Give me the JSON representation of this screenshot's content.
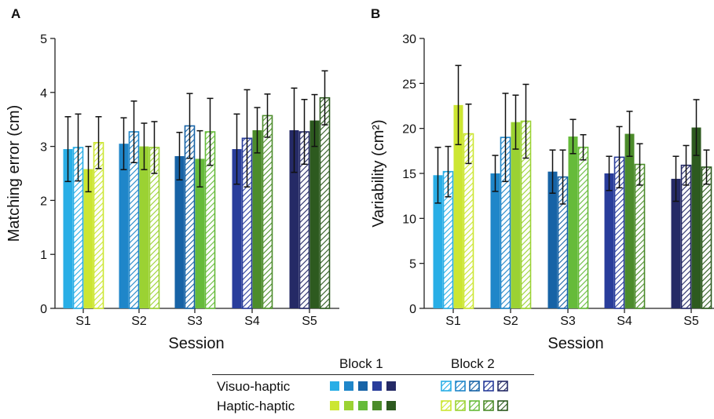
{
  "panels": [
    {
      "letter": "A"
    },
    {
      "letter": "B"
    }
  ],
  "colors": {
    "vh": [
      "#29aee6",
      "#1f86c9",
      "#1763a6",
      "#293d9b",
      "#252a66"
    ],
    "hh": [
      "#cce632",
      "#9bd233",
      "#66bb3a",
      "#4c8c2b",
      "#2d5a1f"
    ]
  },
  "legend": {
    "block1": "Block 1",
    "block2": "Block 2",
    "row1": "Visuo-haptic",
    "row2": "Haptic-haptic"
  },
  "chart_data": [
    {
      "type": "bar",
      "panel": "A",
      "title": "",
      "xlabel": "Session",
      "ylabel": "Matching error (cm)",
      "ylim": [
        0,
        5
      ],
      "yticks": [
        0,
        1,
        2,
        3,
        4,
        5
      ],
      "categories": [
        "S1",
        "S2",
        "S3",
        "S4",
        "S5"
      ],
      "series": [
        {
          "name": "Visuo-haptic Block 1",
          "values": [
            2.95,
            3.05,
            2.82,
            2.95,
            3.3
          ],
          "err": [
            0.6,
            0.48,
            0.44,
            0.65,
            0.78
          ]
        },
        {
          "name": "Visuo-haptic Block 2",
          "values": [
            2.98,
            3.27,
            3.38,
            3.15,
            3.27
          ],
          "err": [
            0.62,
            0.57,
            0.6,
            0.9,
            0.6
          ]
        },
        {
          "name": "Haptic-haptic Block 1",
          "values": [
            2.58,
            3.0,
            2.77,
            3.3,
            3.48
          ],
          "err": [
            0.42,
            0.43,
            0.52,
            0.42,
            0.48
          ]
        },
        {
          "name": "Haptic-haptic Block 2",
          "values": [
            3.07,
            2.98,
            3.27,
            3.57,
            3.9
          ],
          "err": [
            0.48,
            0.48,
            0.62,
            0.4,
            0.5
          ]
        }
      ]
    },
    {
      "type": "bar",
      "panel": "B",
      "title": "",
      "xlabel": "Session",
      "ylabel": "Variability (cm²)",
      "ylim": [
        0,
        30
      ],
      "yticks": [
        0,
        5,
        10,
        15,
        20,
        25,
        30
      ],
      "categories": [
        "S1",
        "S2",
        "S3",
        "S4",
        "S5"
      ],
      "series": [
        {
          "name": "Visuo-haptic Block 1",
          "values": [
            14.8,
            15.0,
            15.2,
            15.0,
            14.4
          ],
          "err": [
            3.1,
            2.0,
            2.4,
            1.9,
            2.5
          ]
        },
        {
          "name": "Visuo-haptic Block 2",
          "values": [
            15.2,
            19.0,
            14.6,
            16.8,
            15.9
          ],
          "err": [
            2.8,
            4.9,
            3.0,
            3.4,
            2.2
          ]
        },
        {
          "name": "Haptic-haptic Block 1",
          "values": [
            22.6,
            20.7,
            19.1,
            19.4,
            20.1
          ],
          "err": [
            4.4,
            3.0,
            1.9,
            2.5,
            3.1
          ]
        },
        {
          "name": "Haptic-haptic Block 2",
          "values": [
            19.4,
            20.8,
            17.9,
            16.0,
            15.7
          ],
          "err": [
            3.3,
            4.1,
            1.4,
            2.3,
            1.9
          ]
        }
      ]
    }
  ]
}
